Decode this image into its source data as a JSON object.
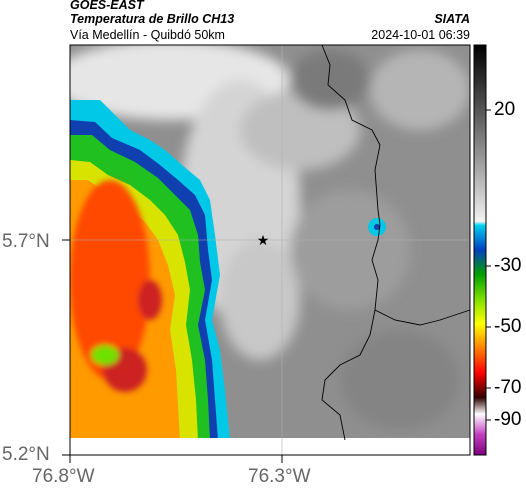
{
  "header": {
    "satellite": "GOES-EAST",
    "product": "Temperatura de Brillo CH13",
    "subtitle": "Vía Medellín - Quibdó 50km",
    "agency": "SIATA",
    "timestamp": "2024-10-01 06:39"
  },
  "map": {
    "x_ticks": [
      "76.8°W",
      "76.3°W"
    ],
    "y_ticks": [
      "5.7°N",
      "5.2°N"
    ],
    "marker_icon": "star-icon"
  },
  "colorbar": {
    "labels": [
      "20",
      "-30",
      "-50",
      "-70",
      "-90"
    ]
  },
  "colors": {
    "cold_core": "#cc2020",
    "cyan_edge": "#00c8e6",
    "green_band": "#20c020",
    "background_gray": "#8f8f8f"
  }
}
